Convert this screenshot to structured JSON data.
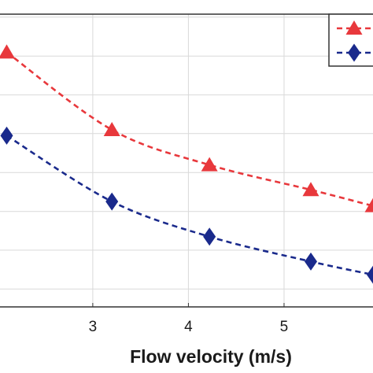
{
  "chart_data": {
    "type": "line",
    "xlabel": "Flow velocity (m/s)",
    "ylabel": "",
    "xlim": [
      2.03,
      5.93
    ],
    "ylim": [
      0,
      1
    ],
    "x_ticks": [
      3,
      4,
      5
    ],
    "y_ticks": [
      0.061,
      0.194,
      0.326,
      0.459,
      0.592,
      0.724,
      0.857,
      0.99
    ],
    "grid": true,
    "legend_position": "top-right",
    "series": [
      {
        "marker": "triangle-icon",
        "color": "#e8383c",
        "line_style": "dashed",
        "x": [
          2.1,
          3.2,
          4.22,
          5.28,
          5.93
        ],
        "y": [
          0.87,
          0.605,
          0.485,
          0.4,
          0.345
        ]
      },
      {
        "marker": "diamond-icon",
        "color": "#1a2a8c",
        "line_style": "dashed",
        "x": [
          2.1,
          3.2,
          4.22,
          5.28,
          5.93
        ],
        "y": [
          0.585,
          0.36,
          0.24,
          0.155,
          0.11
        ]
      }
    ]
  }
}
